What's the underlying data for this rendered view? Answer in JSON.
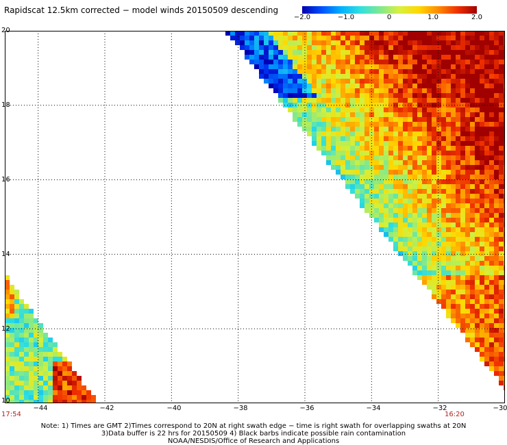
{
  "title": "Rapidscat 12.5km corrected − model winds 20150509 descending",
  "colorbar": {
    "labels": [
      "−2.0",
      "−1.0",
      "0",
      "1.0",
      "2.0"
    ],
    "values": [
      -2.0,
      -1.0,
      0,
      1.0,
      2.0
    ]
  },
  "map": {
    "lon_range": [
      -45,
      -30
    ],
    "lat_range": [
      10,
      20
    ],
    "x_ticks": [
      "−44",
      "−42",
      "−40",
      "−38",
      "−36",
      "−34",
      "−32",
      "−30"
    ],
    "y_ticks": [
      "20",
      "18",
      "16",
      "14",
      "12",
      "10"
    ],
    "grid": true
  },
  "times": {
    "left": "17:54",
    "right": "16:20"
  },
  "notes": [
    "Note: 1) Times are GMT 2)Times correspond to 20N at right swath edge − time is right swath for overlapping swaths at 20N",
    "3)Data buffer is 22 hrs for 20150509 4) Black barbs indicate possible rain contamination",
    "NOAA/NESDIS/Office of Research and Applications"
  ]
}
